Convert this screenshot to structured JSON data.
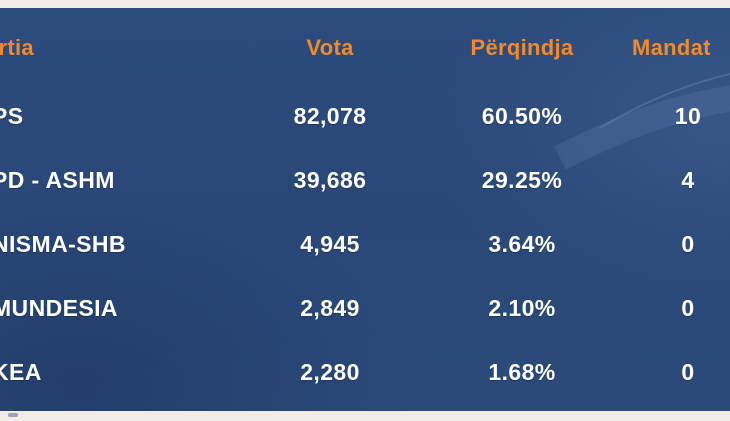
{
  "table": {
    "headers": {
      "party": "artia",
      "votes": "Vota",
      "percentage": "Përqindja",
      "seats": "Mandat"
    },
    "rows": [
      {
        "party": "PS",
        "votes": "82,078",
        "percentage": "60.50%",
        "seats": "10"
      },
      {
        "party": "PD - ASHM",
        "votes": "39,686",
        "percentage": "29.25%",
        "seats": "4"
      },
      {
        "party": "NISMA-SHB",
        "votes": "4,945",
        "percentage": "3.64%",
        "seats": "0"
      },
      {
        "party": "MUNDESIA",
        "votes": "2,849",
        "percentage": "2.10%",
        "seats": "0"
      },
      {
        "party": "KEA",
        "votes": "2,280",
        "percentage": "1.68%",
        "seats": "0"
      }
    ]
  },
  "colors": {
    "background": "#2b4a7a",
    "header_text": "#f08a2a",
    "row_text": "#ffffff",
    "frame": "#f1ede6"
  }
}
